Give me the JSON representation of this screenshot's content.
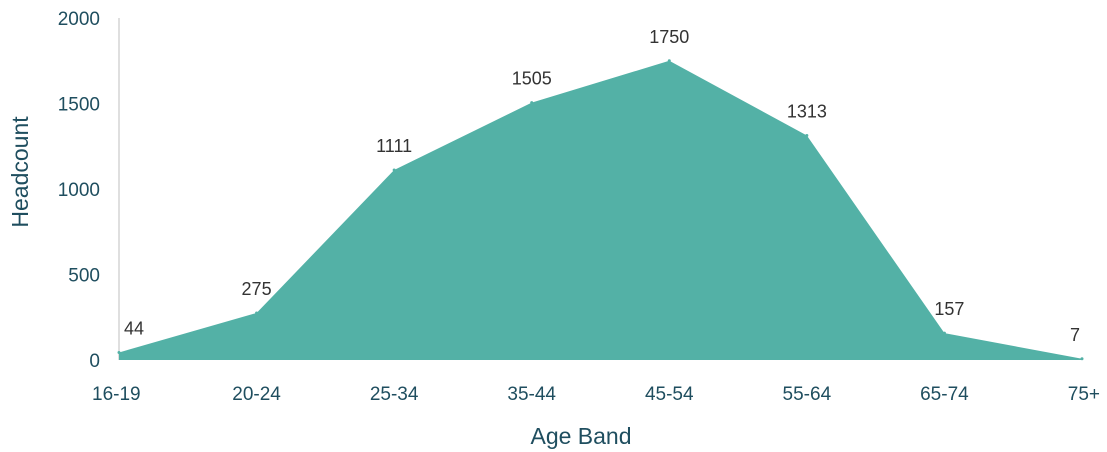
{
  "chart_data": {
    "type": "area",
    "title": "",
    "xlabel": "Age Band",
    "ylabel": "Headcount",
    "categories": [
      "16-19",
      "20-24",
      "25-34",
      "35-44",
      "45-54",
      "55-64",
      "65-74",
      "75+"
    ],
    "series": [
      {
        "values": [
          44,
          275,
          1111,
          1505,
          1750,
          1313,
          157,
          7
        ]
      }
    ],
    "y_ticks": [
      "0",
      "500",
      "1000",
      "1500",
      "2000"
    ],
    "ylim": [
      0,
      2000
    ],
    "grid": false,
    "legend": "none",
    "colors": {
      "area": "#53b1a6",
      "axis": "#bfbfbf",
      "tick_text": "#1f4e5f",
      "label_text": "#333333"
    }
  }
}
